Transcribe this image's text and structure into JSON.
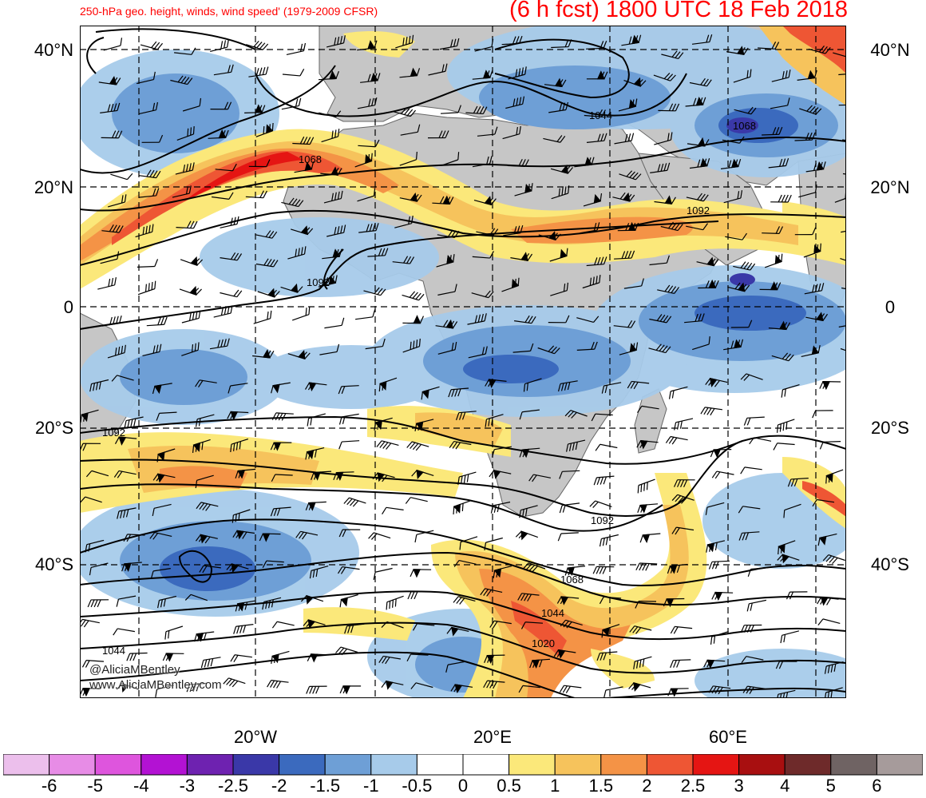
{
  "header": {
    "left_title": "250-hPa geo. height, winds, wind speed' (1979-2009 CFSR)",
    "right_title": "(6 h fcst) 1800 UTC 18 Feb 2018"
  },
  "axes": {
    "lat_labels": [
      "40°N",
      "20°N",
      "0",
      "20°S",
      "40°S"
    ],
    "lon_labels": [
      "20°W",
      "20°E",
      "60°E"
    ]
  },
  "contour_labels": [
    "1044",
    "1068",
    "1092",
    "1092",
    "1092",
    "1092",
    "1068",
    "1044",
    "1020",
    "1044",
    "1068"
  ],
  "credit": {
    "twitter": "@AliciaMBentley",
    "website": "www.AliciaMBentley.com"
  },
  "colorbar": {
    "labels": [
      "-6",
      "-5",
      "-4",
      "-3",
      "-2.5",
      "-2",
      "-1.5",
      "-1",
      "-0.5",
      "0",
      "0.5",
      "1",
      "1.5",
      "2",
      "2.5",
      "3",
      "4",
      "5",
      "6"
    ],
    "colors": [
      "#ecbfec",
      "#e78ce6",
      "#de55dd",
      "#b312d3",
      "#6e22b0",
      "#3a38a8",
      "#3b6abe",
      "#6e9fd6",
      "#a7cbea",
      "#ffffff",
      "#ffffff",
      "#fbe87a",
      "#f6c35c",
      "#f49346",
      "#ee5634",
      "#e51513",
      "#a80f10",
      "#6e2a2a",
      "#6f6363",
      "#a69b9b"
    ]
  },
  "colors": {
    "land": "#c6c6c6",
    "title": "#ff0000",
    "contour": "#000000"
  }
}
